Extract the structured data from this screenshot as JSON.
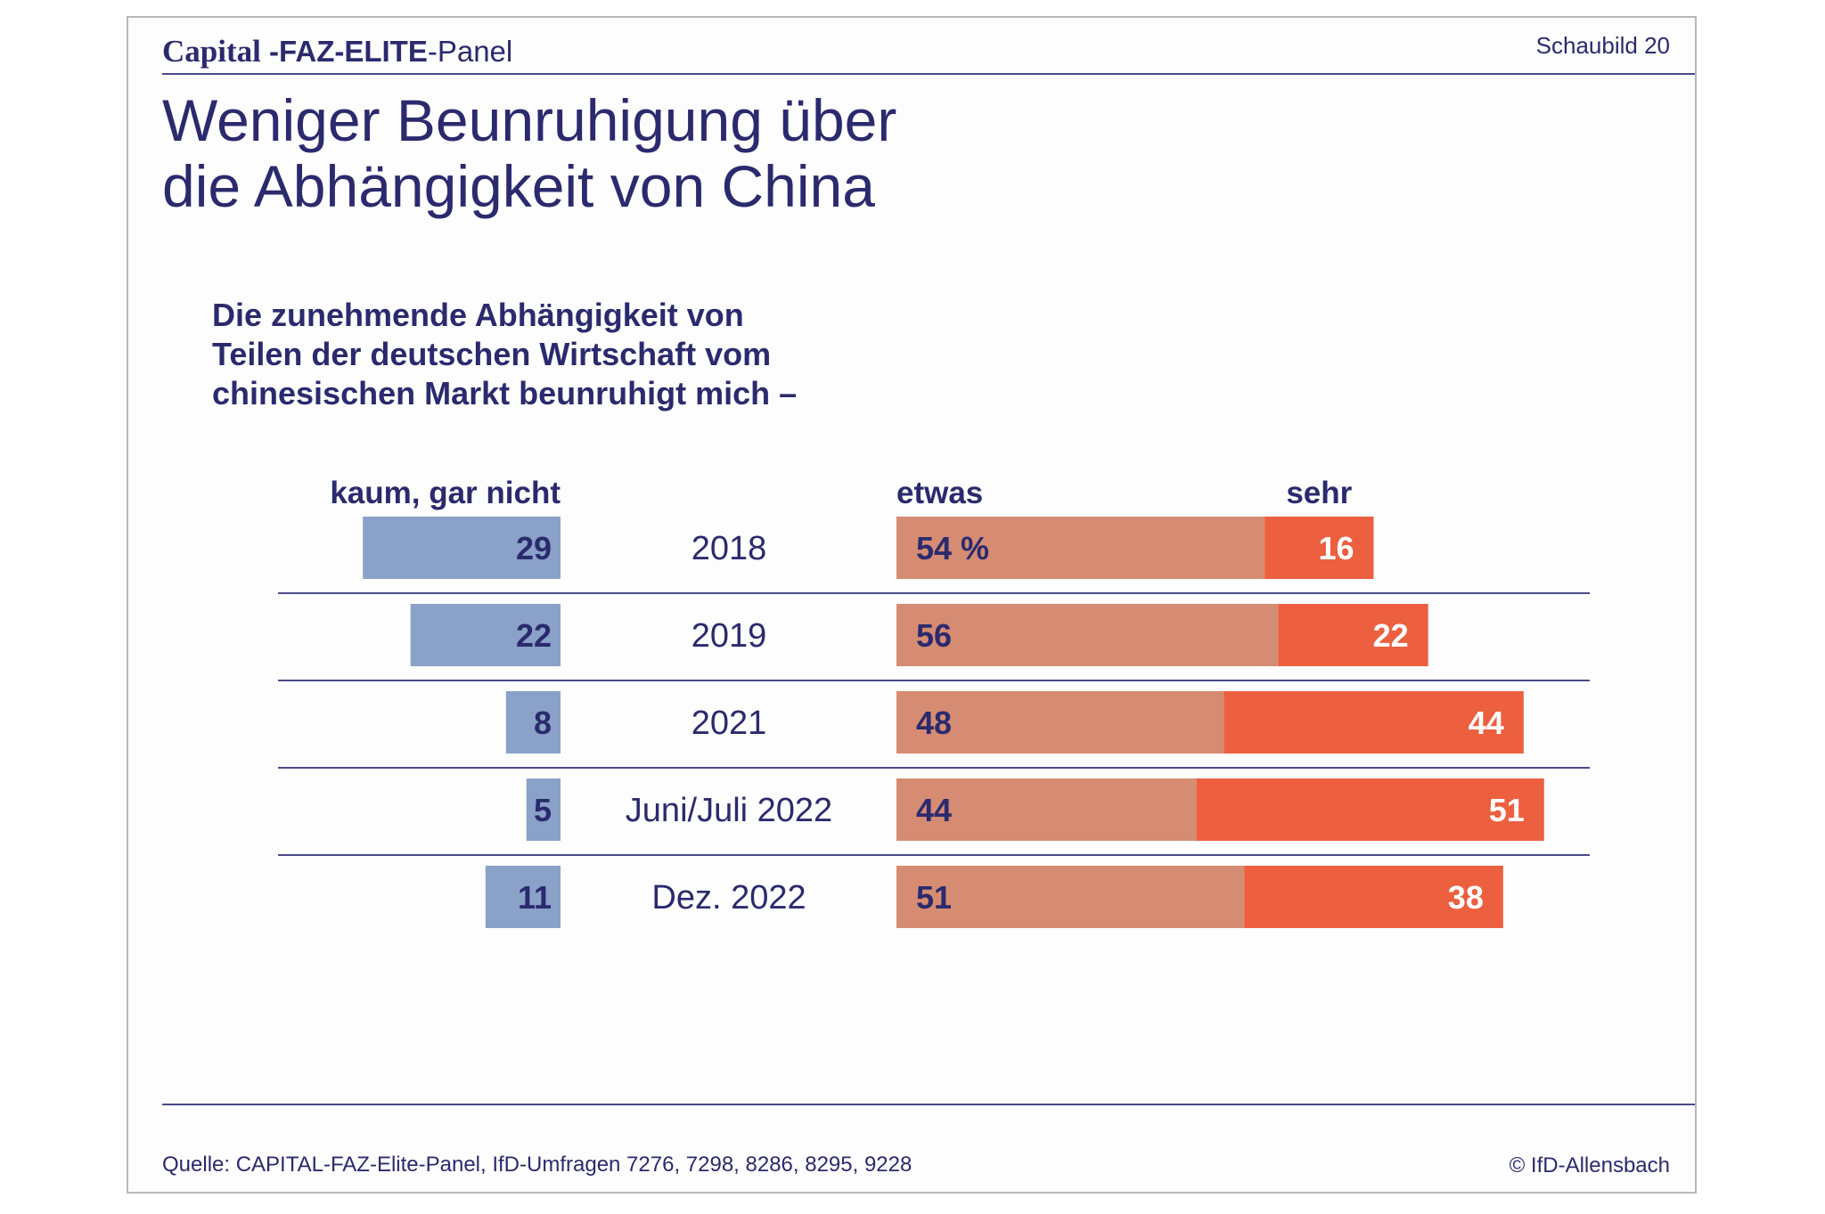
{
  "header": {
    "brand_capital": "Capital",
    "brand_faz": "-FAZ-ELITE",
    "brand_panel": "-Panel",
    "figure_label": "Schaubild 20"
  },
  "title": {
    "line1": "Weniger Beunruhigung über",
    "line2": "die Abhängigkeit von China"
  },
  "question": {
    "line1": "Die zunehmende Abhängigkeit von",
    "line2": "Teilen der deutschen Wirtschaft vom",
    "line3": "chinesischen Markt beunruhigt mich –"
  },
  "footer": {
    "source": "Quelle: CAPITAL-FAZ-Elite-Panel, IfD-Umfragen 7276, 7298, 8286, 8295, 9228",
    "copyright": "© IfD-Allensbach"
  },
  "colors": {
    "text": "#2b2a6e",
    "kaum": "#8aa1c8",
    "etwas": "#d68c72",
    "sehr": "#ec6040",
    "rule": "#4a4a8a"
  },
  "chart_data": {
    "type": "bar",
    "orientation": "horizontal",
    "stacked": true,
    "unit": "%",
    "categories": [
      "2018",
      "2019",
      "2021",
      "Juni/Juli 2022",
      "Dez. 2022"
    ],
    "series": [
      {
        "name": "kaum, gar nicht",
        "values": [
          29,
          22,
          8,
          5,
          11
        ]
      },
      {
        "name": "etwas",
        "values": [
          54,
          56,
          48,
          44,
          51
        ]
      },
      {
        "name": "sehr",
        "values": [
          16,
          22,
          44,
          51,
          38
        ]
      }
    ],
    "value_labels": {
      "kaum, gar nicht": [
        "29",
        "22",
        "8",
        "5",
        "11"
      ],
      "etwas": [
        "54 %",
        "56",
        "48",
        "44",
        "51"
      ],
      "sehr": [
        "16",
        "22",
        "44",
        "51",
        "38"
      ]
    }
  }
}
